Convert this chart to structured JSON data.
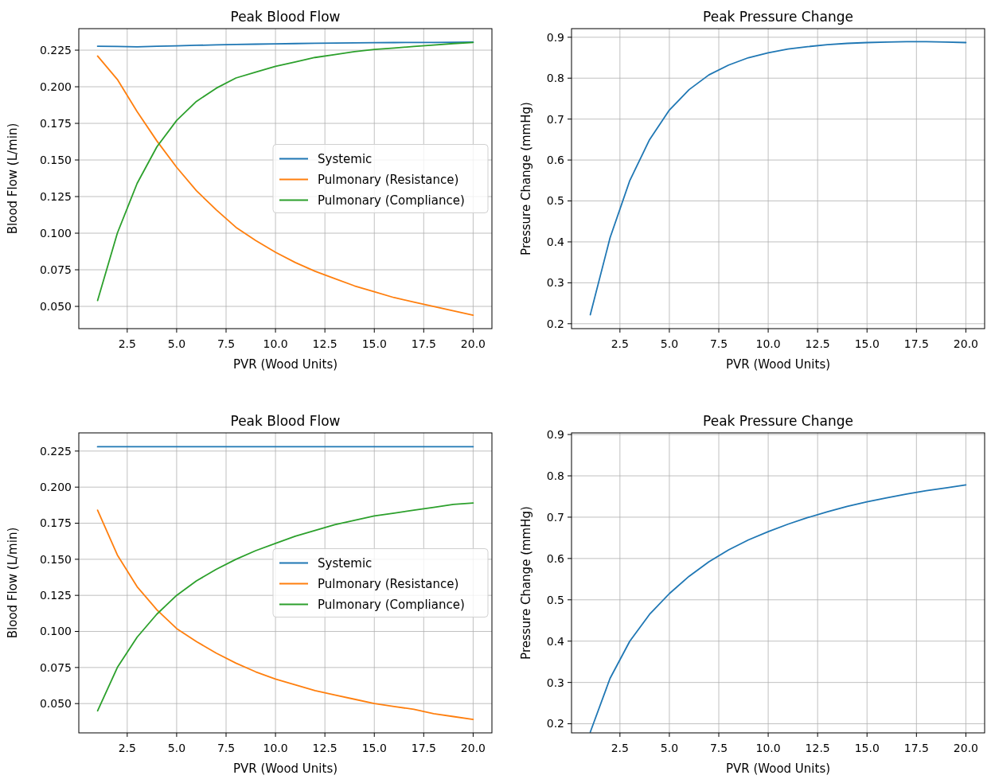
{
  "chart_data": [
    {
      "type": "line",
      "title": "Peak Blood Flow",
      "xlabel": "PVR (Wood Units)",
      "ylabel": "Blood Flow (L/min)",
      "x": [
        1,
        2,
        3,
        4,
        5,
        6,
        7,
        8,
        9,
        10,
        11,
        12,
        13,
        14,
        15,
        16,
        17,
        18,
        19,
        20
      ],
      "xlim": [
        0.05,
        20.95
      ],
      "ylim": [
        0.0348,
        0.2397
      ],
      "xticks": [
        2.5,
        {
          "value": 5,
          "label": "5.0"
        },
        7.5,
        {
          "value": 10,
          "label": "10.0"
        },
        12.5,
        {
          "value": 15,
          "label": "15.0"
        },
        17.5,
        {
          "value": 20,
          "label": "20.0"
        }
      ],
      "yticks": [
        {
          "value": 0.05,
          "label": "0.050"
        },
        0.075,
        {
          "value": 0.1,
          "label": "0.100"
        },
        0.125,
        {
          "value": 0.15,
          "label": "0.150"
        },
        0.175,
        {
          "value": 0.2,
          "label": "0.200"
        },
        0.225
      ],
      "grid": true,
      "legend": "right",
      "line_style": "solid",
      "series": [
        {
          "name": "Systemic",
          "color": "#1f77b4",
          "values": [
            0.2277,
            0.2275,
            0.2273,
            0.2277,
            0.228,
            0.2283,
            0.2286,
            0.2289,
            0.2291,
            0.2293,
            0.2295,
            0.2297,
            0.2299,
            0.23,
            0.2301,
            0.2302,
            0.2303,
            0.2303,
            0.2304,
            0.2305
          ]
        },
        {
          "name": "Pulmonary (Resistance)",
          "color": "#ff7f0e",
          "values": [
            0.221,
            0.205,
            0.183,
            0.163,
            0.145,
            0.129,
            0.116,
            0.104,
            0.095,
            0.087,
            0.08,
            0.074,
            0.069,
            0.064,
            0.06,
            0.056,
            0.053,
            0.05,
            0.047,
            0.044
          ]
        },
        {
          "name": "Pulmonary (Compliance)",
          "color": "#2ca02c",
          "values": [
            0.054,
            0.1,
            0.134,
            0.159,
            0.177,
            0.19,
            0.199,
            0.206,
            0.21,
            0.214,
            0.217,
            0.22,
            0.222,
            0.224,
            0.2255,
            0.2265,
            0.2275,
            0.2285,
            0.2295,
            0.2303
          ]
        }
      ]
    },
    {
      "type": "line",
      "title": "Peak Pressure Change",
      "xlabel": "PVR (Wood Units)",
      "ylabel": "Pressure Change (mmHg)",
      "x": [
        1,
        2,
        3,
        4,
        5,
        6,
        7,
        8,
        9,
        10,
        11,
        12,
        13,
        14,
        15,
        16,
        17,
        18,
        19,
        20
      ],
      "xlim": [
        0.05,
        20.95
      ],
      "ylim": [
        0.188,
        0.921
      ],
      "xticks": [
        2.5,
        {
          "value": 5,
          "label": "5.0"
        },
        7.5,
        {
          "value": 10,
          "label": "10.0"
        },
        12.5,
        {
          "value": 15,
          "label": "15.0"
        },
        17.5,
        {
          "value": 20,
          "label": "20.0"
        }
      ],
      "yticks": [
        0.2,
        0.3,
        0.4,
        0.5,
        0.6,
        0.7,
        0.8,
        0.9
      ],
      "grid": true,
      "line_style": "solid",
      "series": [
        {
          "color": "#1f77b4",
          "values": [
            0.222,
            0.41,
            0.55,
            0.65,
            0.722,
            0.772,
            0.808,
            0.832,
            0.85,
            0.862,
            0.871,
            0.877,
            0.882,
            0.885,
            0.887,
            0.888,
            0.889,
            0.889,
            0.888,
            0.887
          ]
        }
      ]
    },
    {
      "type": "line",
      "title": "Peak Blood Flow",
      "xlabel": "PVR (Wood Units)",
      "ylabel": "Blood Flow (L/min)",
      "x": [
        1,
        2,
        3,
        4,
        5,
        6,
        7,
        8,
        9,
        10,
        11,
        12,
        13,
        14,
        15,
        16,
        17,
        18,
        19,
        20
      ],
      "xlim": [
        0.05,
        20.95
      ],
      "ylim": [
        0.0297,
        0.2376
      ],
      "xticks": [
        2.5,
        {
          "value": 5,
          "label": "5.0"
        },
        7.5,
        {
          "value": 10,
          "label": "10.0"
        },
        12.5,
        {
          "value": 15,
          "label": "15.0"
        },
        17.5,
        {
          "value": 20,
          "label": "20.0"
        }
      ],
      "yticks": [
        {
          "value": 0.05,
          "label": "0.050"
        },
        0.075,
        {
          "value": 0.1,
          "label": "0.100"
        },
        0.125,
        {
          "value": 0.15,
          "label": "0.150"
        },
        0.175,
        {
          "value": 0.2,
          "label": "0.200"
        },
        0.225
      ],
      "grid": true,
      "legend": "right",
      "line_style": "solid",
      "series": [
        {
          "name": "Systemic",
          "color": "#1f77b4",
          "values": [
            0.228,
            0.228,
            0.228,
            0.228,
            0.228,
            0.228,
            0.228,
            0.228,
            0.228,
            0.228,
            0.228,
            0.228,
            0.228,
            0.228,
            0.228,
            0.228,
            0.228,
            0.228,
            0.228,
            0.228
          ]
        },
        {
          "name": "Pulmonary (Resistance)",
          "color": "#ff7f0e",
          "values": [
            0.184,
            0.153,
            0.131,
            0.115,
            0.102,
            0.093,
            0.085,
            0.078,
            0.072,
            0.067,
            0.063,
            0.059,
            0.056,
            0.053,
            0.05,
            0.048,
            0.046,
            0.043,
            0.041,
            0.039
          ]
        },
        {
          "name": "Pulmonary (Compliance)",
          "color": "#2ca02c",
          "values": [
            0.045,
            0.075,
            0.096,
            0.112,
            0.125,
            0.135,
            0.143,
            0.15,
            0.156,
            0.161,
            0.166,
            0.17,
            0.174,
            0.177,
            0.18,
            0.182,
            0.184,
            0.186,
            0.188,
            0.189
          ]
        }
      ]
    },
    {
      "type": "line",
      "title": "Peak Pressure Change",
      "xlabel": "PVR (Wood Units)",
      "ylabel": "Pressure Change (mmHg)",
      "x": [
        1,
        2,
        3,
        4,
        5,
        6,
        7,
        8,
        9,
        10,
        11,
        12,
        13,
        14,
        15,
        16,
        17,
        18,
        19,
        20
      ],
      "xlim": [
        0.05,
        20.95
      ],
      "ylim": [
        0.178,
        0.904
      ],
      "xticks": [
        2.5,
        {
          "value": 5,
          "label": "5.0"
        },
        7.5,
        {
          "value": 10,
          "label": "10.0"
        },
        12.5,
        {
          "value": 15,
          "label": "15.0"
        },
        17.5,
        {
          "value": 20,
          "label": "20.0"
        }
      ],
      "yticks": [
        0.2,
        0.3,
        0.4,
        0.5,
        0.6,
        0.7,
        0.8,
        0.9
      ],
      "grid": true,
      "line_style": "solid",
      "series": [
        {
          "color": "#1f77b4",
          "values": [
            0.18,
            0.31,
            0.4,
            0.465,
            0.515,
            0.557,
            0.592,
            0.621,
            0.645,
            0.665,
            0.683,
            0.699,
            0.713,
            0.726,
            0.737,
            0.747,
            0.756,
            0.764,
            0.771,
            0.778
          ]
        }
      ]
    }
  ]
}
